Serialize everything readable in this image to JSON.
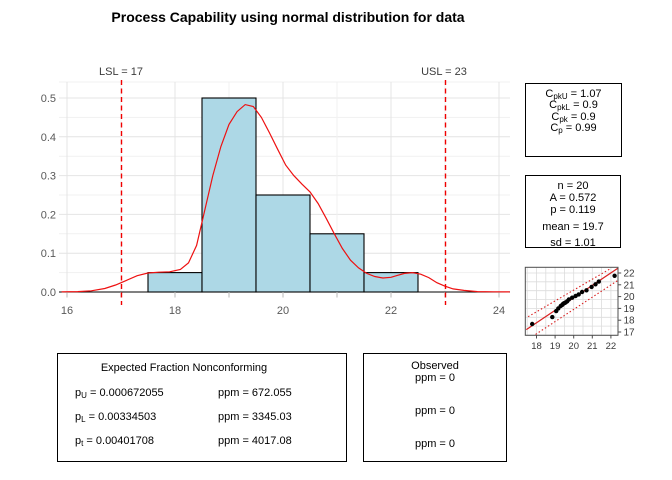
{
  "title": "Process Capability using normal distribution for data",
  "colors": {
    "hist_fill": "#ADD8E6",
    "hist_border": "#000000",
    "density_line": "#EE1111",
    "spec_line": "#F00000",
    "grid_major": "#E4E4E4",
    "grid_minor": "#F1F1F1",
    "axis_tick": "#B8B8B8",
    "axis_text": "#595959",
    "baseline": "#000000",
    "qq_frame": "#4D4D4D",
    "qq_grid": "#DCDCDC",
    "qq_line": "#D92121",
    "qq_dot": "#000000",
    "qq_text": "#3A3A3A"
  },
  "chart_data": [
    {
      "type": "bar",
      "subtype": "histogram-with-density",
      "title": "Process Capability using normal distribution for data",
      "xlabel": "",
      "ylabel": "",
      "xlim": [
        15.85,
        24.25
      ],
      "ylim": [
        0,
        0.55
      ],
      "grid": true,
      "x_ticks": {
        "values": [
          16,
          17,
          18,
          19,
          20,
          21,
          22,
          23,
          24
        ],
        "labels": [
          "16",
          "",
          "18",
          "",
          "20",
          "",
          "22",
          "",
          "24"
        ]
      },
      "y_ticks": {
        "values": [
          0,
          0.1,
          0.2,
          0.3,
          0.4,
          0.5
        ],
        "labels": [
          "0.0",
          "0.1",
          "0.2",
          "0.3",
          "0.4",
          "0.5"
        ]
      },
      "bins": {
        "breaks": [
          17.5,
          18.5,
          19.5,
          20.5,
          21.5,
          22.5
        ],
        "density": [
          0.05,
          0.5,
          0.25,
          0.15,
          0.05
        ]
      },
      "spec_limits": {
        "lsl": {
          "value": 17,
          "label": "LSL = 17"
        },
        "usl": {
          "value": 23,
          "label": "USL = 23"
        }
      },
      "density_curve": [
        [
          15.9,
          0.0005
        ],
        [
          16.2,
          0.001
        ],
        [
          16.45,
          0.003
        ],
        [
          16.7,
          0.009
        ],
        [
          16.9,
          0.018
        ],
        [
          17.1,
          0.03
        ],
        [
          17.3,
          0.042
        ],
        [
          17.5,
          0.049
        ],
        [
          17.7,
          0.051
        ],
        [
          17.9,
          0.052
        ],
        [
          18.1,
          0.058
        ],
        [
          18.25,
          0.075
        ],
        [
          18.4,
          0.12
        ],
        [
          18.55,
          0.21
        ],
        [
          18.7,
          0.3
        ],
        [
          18.85,
          0.375
        ],
        [
          19.0,
          0.432
        ],
        [
          19.15,
          0.465
        ],
        [
          19.3,
          0.483
        ],
        [
          19.45,
          0.478
        ],
        [
          19.6,
          0.45
        ],
        [
          19.75,
          0.41
        ],
        [
          19.9,
          0.368
        ],
        [
          20.05,
          0.327
        ],
        [
          20.2,
          0.3
        ],
        [
          20.35,
          0.278
        ],
        [
          20.5,
          0.258
        ],
        [
          20.65,
          0.228
        ],
        [
          20.8,
          0.19
        ],
        [
          20.95,
          0.15
        ],
        [
          21.1,
          0.112
        ],
        [
          21.25,
          0.082
        ],
        [
          21.4,
          0.062
        ],
        [
          21.55,
          0.048
        ],
        [
          21.7,
          0.04
        ],
        [
          21.85,
          0.036
        ],
        [
          22.0,
          0.038
        ],
        [
          22.1,
          0.042
        ],
        [
          22.25,
          0.048
        ],
        [
          22.4,
          0.05
        ],
        [
          22.55,
          0.046
        ],
        [
          22.7,
          0.037
        ],
        [
          22.85,
          0.024
        ],
        [
          23.0,
          0.015
        ],
        [
          23.15,
          0.008
        ],
        [
          23.35,
          0.004
        ],
        [
          23.6,
          0.001
        ],
        [
          23.9,
          0.0004
        ],
        [
          24.2,
          0.0002
        ]
      ]
    },
    {
      "type": "scatter",
      "subtype": "normal-qq-plot",
      "xlim": [
        17.4,
        22.38
      ],
      "ylim": [
        16.72,
        22.48
      ],
      "grid": true,
      "x_ticks": [
        18,
        19,
        20,
        21,
        22
      ],
      "y_ticks": [
        17,
        18,
        19,
        20,
        21,
        22
      ],
      "points": [
        [
          17.77,
          17.68
        ],
        [
          18.85,
          18.26
        ],
        [
          19.06,
          18.77
        ],
        [
          19.17,
          19.0
        ],
        [
          19.3,
          19.2
        ],
        [
          19.38,
          19.3
        ],
        [
          19.44,
          19.4
        ],
        [
          19.5,
          19.45
        ],
        [
          19.57,
          19.51
        ],
        [
          19.65,
          19.6
        ],
        [
          19.74,
          19.76
        ],
        [
          19.92,
          19.91
        ],
        [
          20.1,
          20.05
        ],
        [
          20.27,
          20.19
        ],
        [
          20.45,
          20.39
        ],
        [
          20.69,
          20.53
        ],
        [
          20.96,
          20.82
        ],
        [
          21.17,
          21.04
        ],
        [
          21.35,
          21.27
        ],
        [
          22.2,
          21.76
        ]
      ],
      "ref_line": [
        [
          17.45,
          17.2
        ],
        [
          22.37,
          22.4
        ]
      ],
      "band_upper": [
        [
          17.55,
          18.3
        ],
        [
          21.95,
          22.35
        ]
      ],
      "band_lower": [
        [
          17.95,
          16.8
        ],
        [
          22.35,
          21.35
        ]
      ]
    }
  ],
  "capability_box": {
    "lines": [
      {
        "base": "C",
        "sub": "pkU",
        "rest": " = 1.07"
      },
      {
        "base": "C",
        "sub": "pkL",
        "rest": " = 0.9"
      },
      {
        "base": "C",
        "sub": "pk",
        "rest": " = 0.9"
      },
      {
        "base": "C",
        "sub": "p",
        "rest": " = 0.99"
      }
    ]
  },
  "summary_box": {
    "lines": [
      "n = 20",
      "A = 0.572",
      "p = 0.119",
      "mean = 19.7",
      "sd = 1.01"
    ]
  },
  "expected_box": {
    "title": "Expected Fraction Nonconforming",
    "rows": [
      {
        "base": "p",
        "sub": "U",
        "rest": " = 0.000672055",
        "ppm": "ppm = 672.055"
      },
      {
        "base": "p",
        "sub": "L",
        "rest": " = 0.00334503",
        "ppm": "ppm = 3345.03"
      },
      {
        "base": "p",
        "sub": "t",
        "rest": " = 0.00401708",
        "ppm": "ppm = 4017.08"
      }
    ]
  },
  "observed_box": {
    "title": "Observed",
    "rows": [
      "ppm = 0",
      "ppm = 0",
      "ppm = 0"
    ]
  }
}
